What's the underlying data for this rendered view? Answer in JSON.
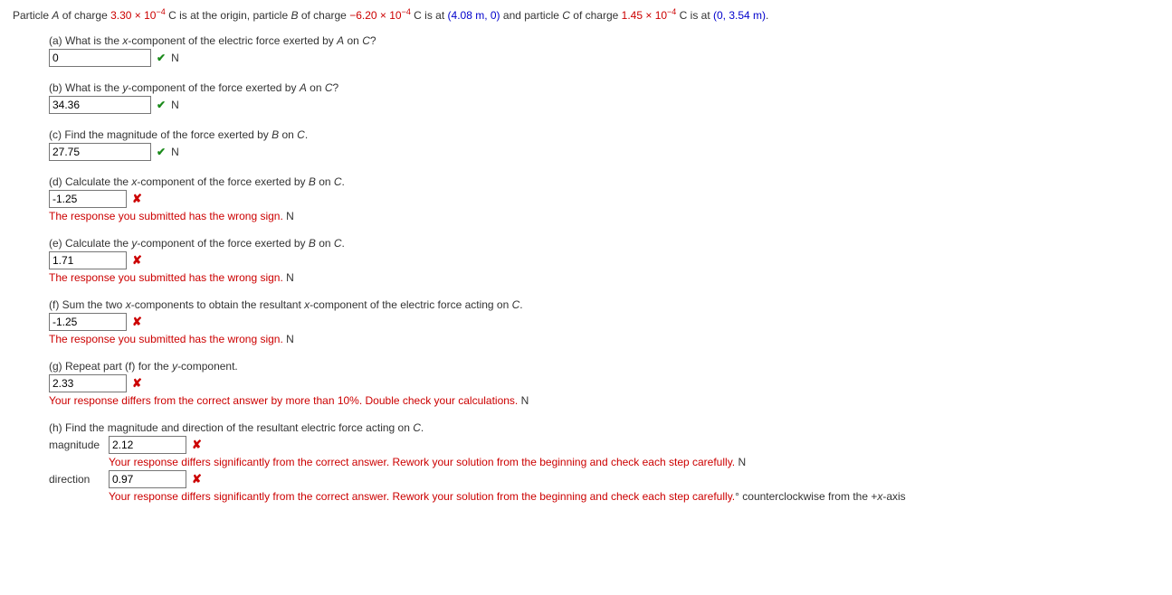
{
  "intro": {
    "text1": "Particle ",
    "A": "A",
    "text2": " of charge ",
    "chargeA": "3.30 × 10",
    "chargeA_exp": "−4",
    "text3": " C is at the origin, particle ",
    "B": "B",
    "text4": " of charge ",
    "chargeB": "−6.20 × 10",
    "chargeB_exp": "−4",
    "text5": " C is at ",
    "posB": "(4.08 m, 0)",
    "text6": " and particle ",
    "C": "C",
    "text7": " of charge ",
    "chargeC": "1.45 × 10",
    "chargeC_exp": "−4",
    "text8": " C is at ",
    "posC": "(0, 3.54 m)",
    "text9": "."
  },
  "parts": {
    "a": {
      "prompt_pre": "(a) What is the ",
      "var": "x",
      "prompt_post": "-component of the electric force exerted by ",
      "src": "A",
      "on": " on ",
      "tgt": "C",
      "q": "?",
      "value": "0",
      "status": "correct",
      "unit": "N"
    },
    "b": {
      "prompt_pre": "(b) What is the ",
      "var": "y",
      "prompt_post": "-component of the force exerted by ",
      "src": "A",
      "on": " on ",
      "tgt": "C",
      "q": "?",
      "value": "34.36",
      "status": "correct",
      "unit": "N"
    },
    "c": {
      "prompt_full": "(c) Find the magnitude of the force exerted by ",
      "src": "B",
      "on": " on ",
      "tgt": "C",
      "q": ".",
      "value": "27.75",
      "status": "correct",
      "unit": "N"
    },
    "d": {
      "prompt_pre": "(d) Calculate the ",
      "var": "x",
      "prompt_post": "-component of the force exerted by ",
      "src": "B",
      "on": " on ",
      "tgt": "C",
      "q": ".",
      "value": "-1.25",
      "status": "wrong",
      "feedback": "The response you submitted has the wrong sign.",
      "unit": "N"
    },
    "e": {
      "prompt_pre": "(e) Calculate the ",
      "var": "y",
      "prompt_post": "-component of the force exerted by ",
      "src": "B",
      "on": " on ",
      "tgt": "C",
      "q": ".",
      "value": "1.71",
      "status": "wrong",
      "feedback": "The response you submitted has the wrong sign.",
      "unit": "N"
    },
    "f": {
      "prompt_pre": "(f) Sum the two ",
      "var1": "x",
      "prompt_mid": "-components to obtain the resultant ",
      "var2": "x",
      "prompt_post": "-component of the electric force acting on ",
      "tgt": "C",
      "q": ".",
      "value": "-1.25",
      "status": "wrong",
      "feedback": "The response you submitted has the wrong sign.",
      "unit": "N"
    },
    "g": {
      "prompt_pre": "(g) Repeat part (f) for the ",
      "var": "y",
      "prompt_post": "-component.",
      "value": "2.33",
      "status": "wrong",
      "feedback": "Your response differs from the correct answer by more than 10%. Double check your calculations.",
      "unit": "N"
    },
    "h": {
      "prompt_full": "(h) Find the magnitude and direction of the resultant electric force acting on ",
      "tgt": "C",
      "q": ".",
      "mag_label": "magnitude",
      "mag_value": "2.12",
      "mag_feedback": "Your response differs significantly from the correct answer. Rework your solution from the beginning and check each step carefully.",
      "mag_unit": "N",
      "dir_label": "direction",
      "dir_value": "0.97",
      "dir_feedback": "Your response differs significantly from the correct answer. Rework your solution from the beginning and check each step carefully.",
      "dir_unit_pre": "° counterclockwise from the +",
      "dir_var": "x",
      "dir_unit_post": "-axis"
    }
  },
  "icons": {
    "check": "✔",
    "x": "✘"
  }
}
